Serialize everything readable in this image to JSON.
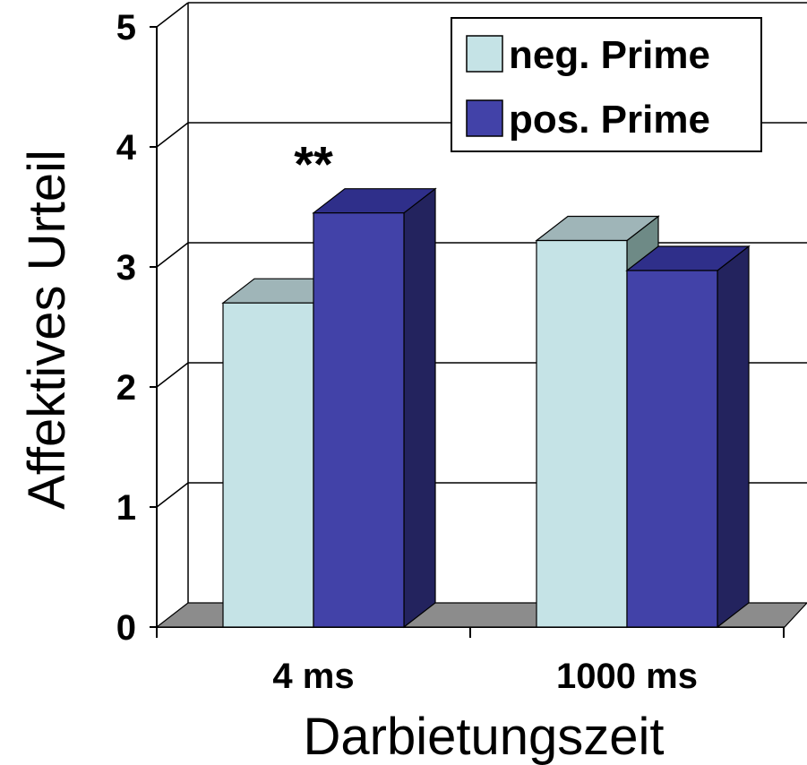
{
  "chart_data": {
    "type": "bar",
    "categories": [
      "4 ms",
      "1000 ms"
    ],
    "series": [
      {
        "name": "neg. Prime",
        "values": [
          2.7,
          3.22
        ],
        "color": "#c5e3e6",
        "top_color": "#9fb5b8",
        "side_color": "#6e8a86"
      },
      {
        "name": "pos. Prime",
        "values": [
          3.45,
          2.97
        ],
        "color": "#4242a8",
        "top_color": "#2f2f8a",
        "side_color": "#23235e"
      }
    ],
    "xlabel": "Darbietungszeit",
    "ylabel": "Affektives Urteil",
    "ylim": [
      0,
      5
    ],
    "yticks": [
      "0",
      "1",
      "2",
      "3",
      "4",
      "5"
    ],
    "annotations": [
      {
        "text": "**",
        "category": "4 ms"
      }
    ],
    "grid": true,
    "legend_position": "top-right",
    "style": "3d-bar"
  }
}
